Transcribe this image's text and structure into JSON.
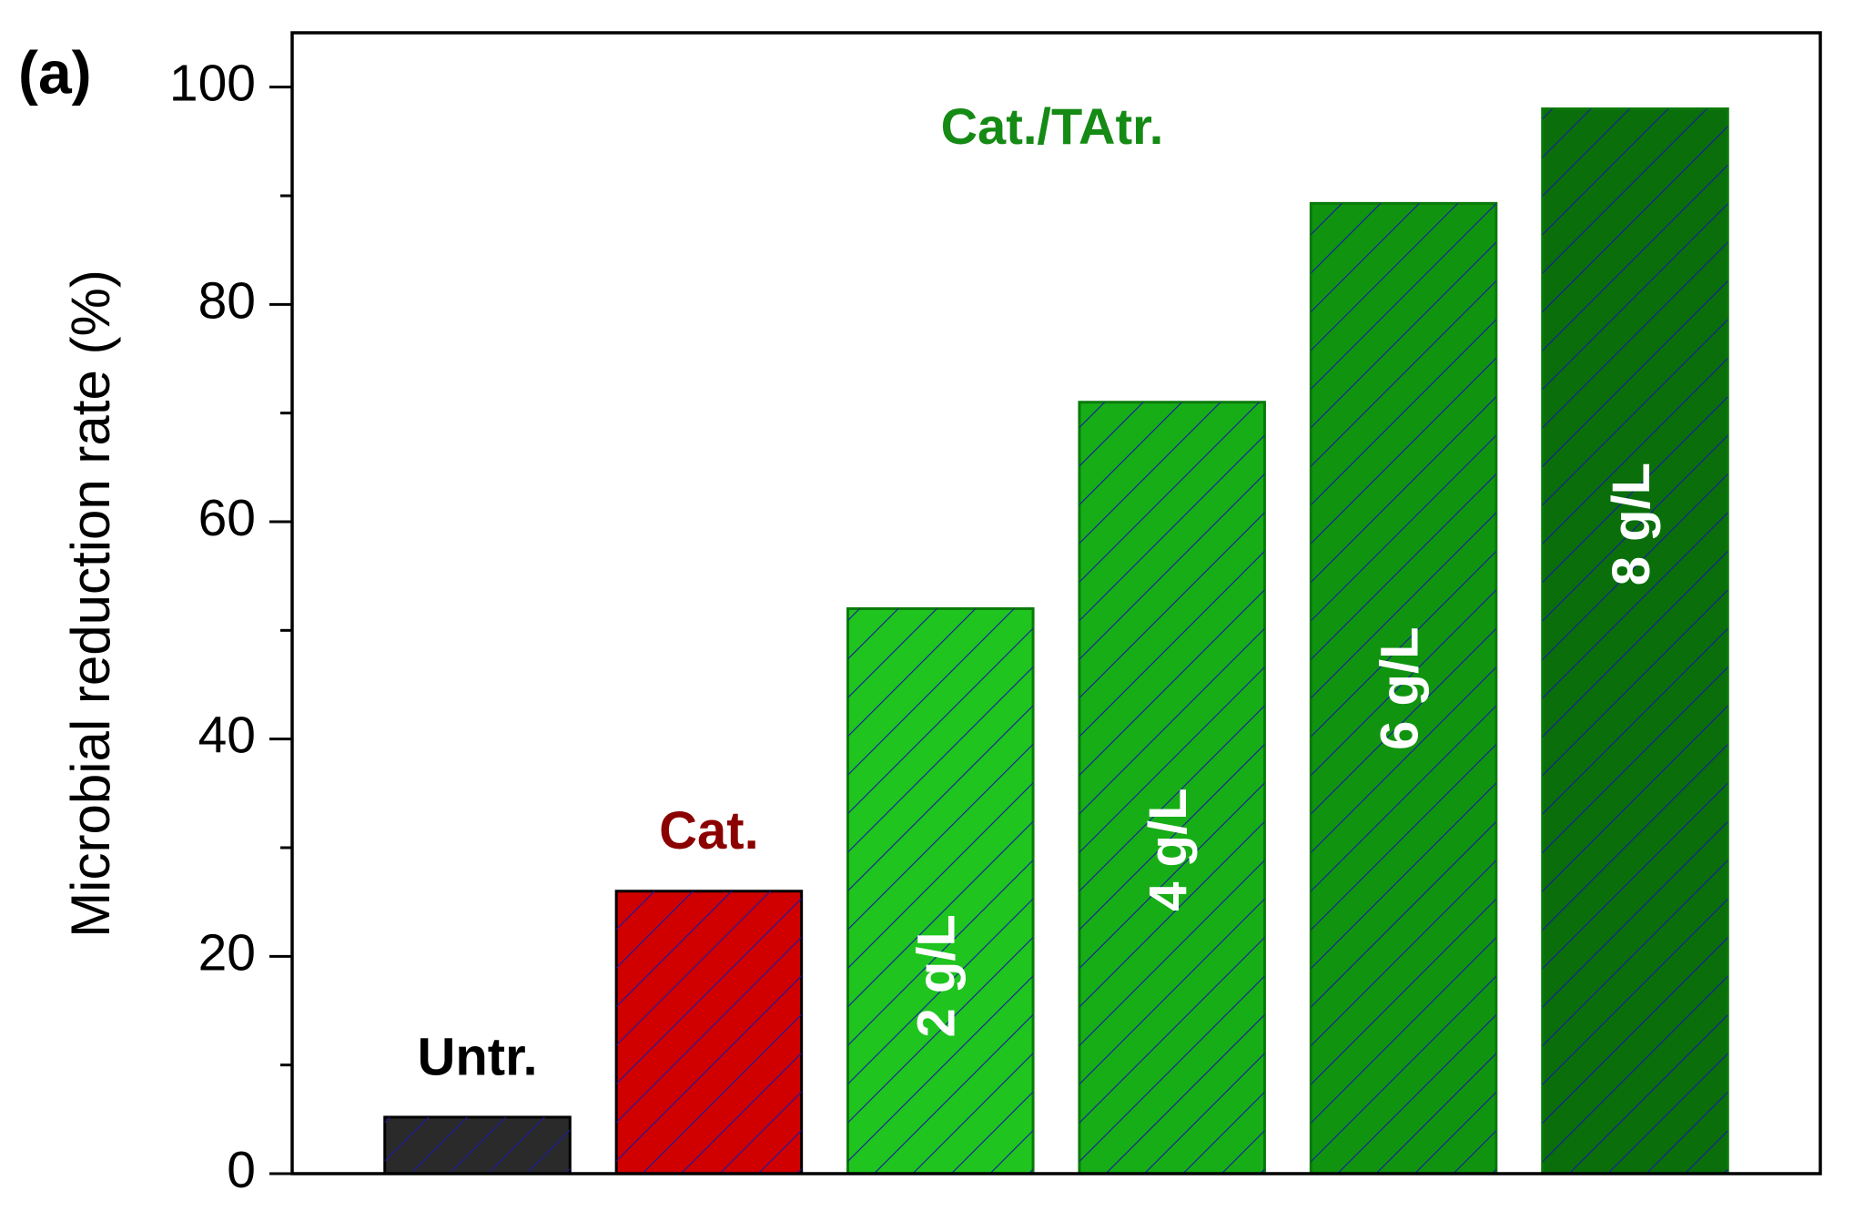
{
  "chart_data": {
    "type": "bar",
    "panel_label": "(a)",
    "ylabel": "Microbial reduction rate (%)",
    "group_label": "Cat./TAtr.",
    "group_label_color": "#158a15",
    "categories": [
      "Untr.",
      "Cat.",
      "2 g/L",
      "4 g/L",
      "6 g/L",
      "8 g/L"
    ],
    "values": [
      5.2,
      26,
      52,
      71,
      89.3,
      98
    ],
    "colors": [
      "#2a2a2a",
      "#d00000",
      "#1fc41f",
      "#17ad17",
      "#109410",
      "#0a6e0a"
    ],
    "label_colors": [
      "#000000",
      "#8b0000",
      "#ffffff",
      "#ffffff",
      "#ffffff",
      "#ffffff"
    ],
    "hatch_color": "#1a1aa0",
    "ylim": [
      0,
      105
    ],
    "yticks": [
      0,
      20,
      40,
      60,
      80,
      100
    ],
    "yminorticks": [
      10,
      30,
      50,
      70,
      90
    ]
  }
}
